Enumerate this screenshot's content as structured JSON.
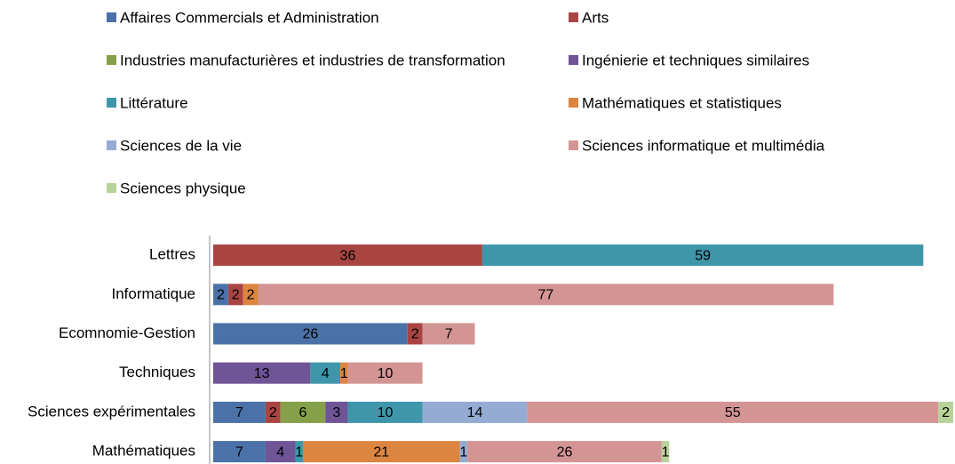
{
  "chart_data": {
    "type": "stacked_bar_horizontal",
    "categories": [
      "Lettres",
      "Informatique",
      "Ecomnomie-Gestion",
      "Techniques",
      "Sciences expérimentales",
      "Mathématiques"
    ],
    "series": [
      {
        "name": "Affaires Commercials et Administration",
        "color": "#4a72a8",
        "values": [
          null,
          2,
          26,
          null,
          7,
          7
        ]
      },
      {
        "name": "Arts",
        "color": "#a84543",
        "values": [
          36,
          2,
          2,
          null,
          2,
          null
        ]
      },
      {
        "name": "Industries manufacturières et industries de transformation",
        "color": "#86a04a",
        "values": [
          null,
          null,
          null,
          null,
          6,
          null
        ]
      },
      {
        "name": "Ingénierie et techniques similaires",
        "color": "#6f5496",
        "values": [
          null,
          null,
          null,
          13,
          3,
          4
        ]
      },
      {
        "name": "Littérature",
        "color": "#3f96ab",
        "values": [
          59,
          null,
          null,
          4,
          10,
          1
        ]
      },
      {
        "name": "Mathématiques et statistiques",
        "color": "#dc8541",
        "values": [
          null,
          2,
          null,
          1,
          null,
          21
        ]
      },
      {
        "name": "Sciences de la vie",
        "color": "#94abd3",
        "values": [
          null,
          null,
          null,
          null,
          14,
          1
        ]
      },
      {
        "name": "Sciences informatique et multimédia",
        "color": "#d39594",
        "values": [
          null,
          77,
          7,
          10,
          55,
          26
        ]
      },
      {
        "name": "Sciences physique",
        "color": "#b7d39a",
        "values": [
          null,
          null,
          null,
          null,
          2,
          1
        ]
      }
    ],
    "legend": "top"
  }
}
